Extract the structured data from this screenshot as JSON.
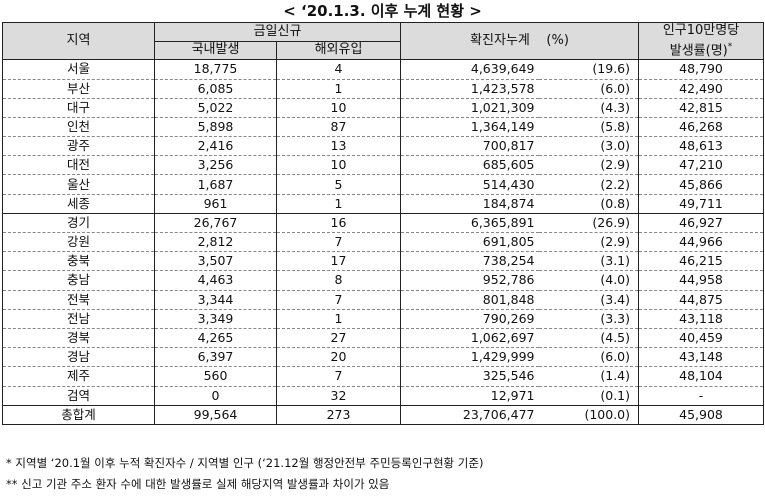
{
  "title": "< ‘20.1.3. 이후 누계 현황 >",
  "headers": {
    "region": "지역",
    "today_new": "금일신규",
    "domestic": "국내발생",
    "overseas": "해외유입",
    "cumulative": "확진자누계",
    "pct": "(%)",
    "per100k_line1": "인구10만명당",
    "per100k_line2": "발생률(명)",
    "star": "*"
  },
  "rows": [
    {
      "region": "서울",
      "domestic": "18,775",
      "overseas": "4",
      "cumulative": "4,639,649",
      "pct": "(19.6)",
      "rate": "48,790"
    },
    {
      "region": "부산",
      "domestic": "6,085",
      "overseas": "1",
      "cumulative": "1,423,578",
      "pct": "(6.0)",
      "rate": "42,490"
    },
    {
      "region": "대구",
      "domestic": "5,022",
      "overseas": "10",
      "cumulative": "1,021,309",
      "pct": "(4.3)",
      "rate": "42,815"
    },
    {
      "region": "인천",
      "domestic": "5,898",
      "overseas": "87",
      "cumulative": "1,364,149",
      "pct": "(5.8)",
      "rate": "46,268"
    },
    {
      "region": "광주",
      "domestic": "2,416",
      "overseas": "13",
      "cumulative": "700,817",
      "pct": "(3.0)",
      "rate": "48,613"
    },
    {
      "region": "대전",
      "domestic": "3,256",
      "overseas": "10",
      "cumulative": "685,605",
      "pct": "(2.9)",
      "rate": "47,210"
    },
    {
      "region": "울산",
      "domestic": "1,687",
      "overseas": "5",
      "cumulative": "514,430",
      "pct": "(2.2)",
      "rate": "45,866"
    },
    {
      "region": "세종",
      "domestic": "961",
      "overseas": "1",
      "cumulative": "184,874",
      "pct": "(0.8)",
      "rate": "49,711"
    },
    {
      "region": "경기",
      "domestic": "26,767",
      "overseas": "16",
      "cumulative": "6,365,891",
      "pct": "(26.9)",
      "rate": "46,927"
    },
    {
      "region": "강원",
      "domestic": "2,812",
      "overseas": "7",
      "cumulative": "691,805",
      "pct": "(2.9)",
      "rate": "44,966"
    },
    {
      "region": "충북",
      "domestic": "3,507",
      "overseas": "17",
      "cumulative": "738,254",
      "pct": "(3.1)",
      "rate": "46,215"
    },
    {
      "region": "충남",
      "domestic": "4,463",
      "overseas": "8",
      "cumulative": "952,786",
      "pct": "(4.0)",
      "rate": "44,958"
    },
    {
      "region": "전북",
      "domestic": "3,344",
      "overseas": "7",
      "cumulative": "801,848",
      "pct": "(3.4)",
      "rate": "44,875"
    },
    {
      "region": "전남",
      "domestic": "3,349",
      "overseas": "1",
      "cumulative": "790,269",
      "pct": "(3.3)",
      "rate": "43,118"
    },
    {
      "region": "경북",
      "domestic": "4,265",
      "overseas": "27",
      "cumulative": "1,062,697",
      "pct": "(4.5)",
      "rate": "40,459"
    },
    {
      "region": "경남",
      "domestic": "6,397",
      "overseas": "20",
      "cumulative": "1,429,999",
      "pct": "(6.0)",
      "rate": "43,148"
    },
    {
      "region": "제주",
      "domestic": "560",
      "overseas": "7",
      "cumulative": "325,546",
      "pct": "(1.4)",
      "rate": "48,104"
    },
    {
      "region": "검역",
      "domestic": "0",
      "overseas": "32",
      "cumulative": "12,971",
      "pct": "(0.1)",
      "rate": "-"
    }
  ],
  "total": {
    "region": "총합계",
    "domestic": "99,564",
    "overseas": "273",
    "cumulative": "23,706,477",
    "pct": "(100.0)",
    "rate": "45,908"
  },
  "footnotes": [
    "* 지역별 ‘20.1월 이후 누적 확진자수 / 지역별 인구 (‘21.12월 행정안전부 주민등록인구현황 기준)",
    "** 신고 기관 주소 환자 수에 대한 발생률로 실제 해당지역 발생률과 차이가 있음"
  ]
}
